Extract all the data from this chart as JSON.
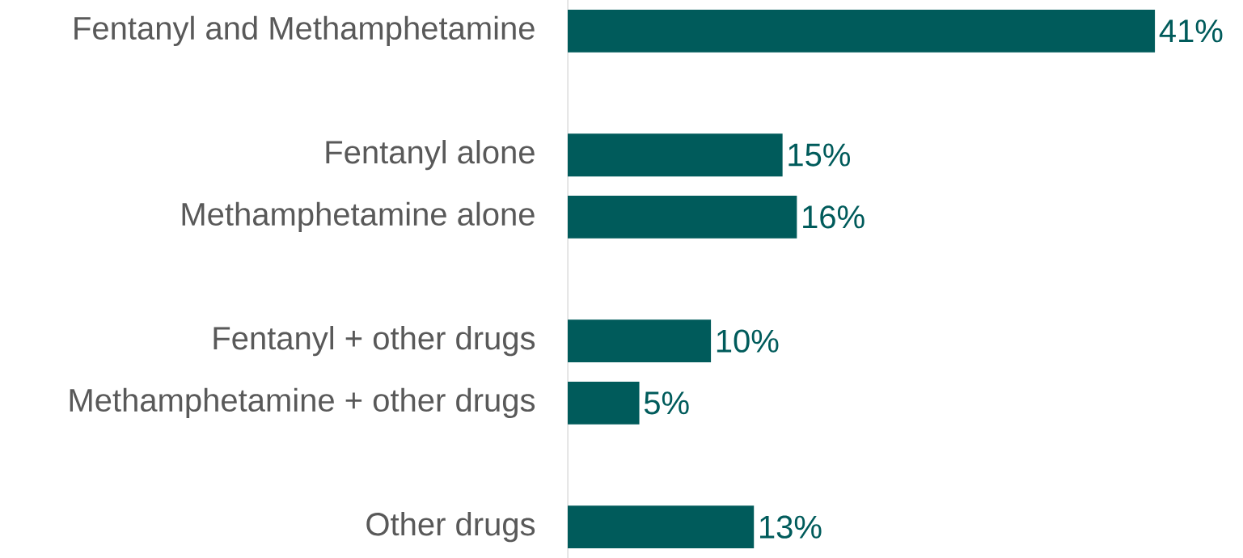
{
  "chart_data": {
    "type": "bar",
    "orientation": "horizontal",
    "color": "#005b5b",
    "categories": [
      "Fentanyl and Methamphetamine",
      null,
      "Fentanyl alone",
      "Methamphetamine alone",
      null,
      "Fentanyl + other drugs",
      "Methamphetamine + other drugs",
      null,
      "Other drugs"
    ],
    "values": [
      41,
      null,
      15,
      16,
      null,
      10,
      5,
      null,
      13
    ],
    "value_labels": [
      "41%",
      null,
      "15%",
      "16%",
      null,
      "10%",
      "5%",
      null,
      "13%"
    ]
  }
}
